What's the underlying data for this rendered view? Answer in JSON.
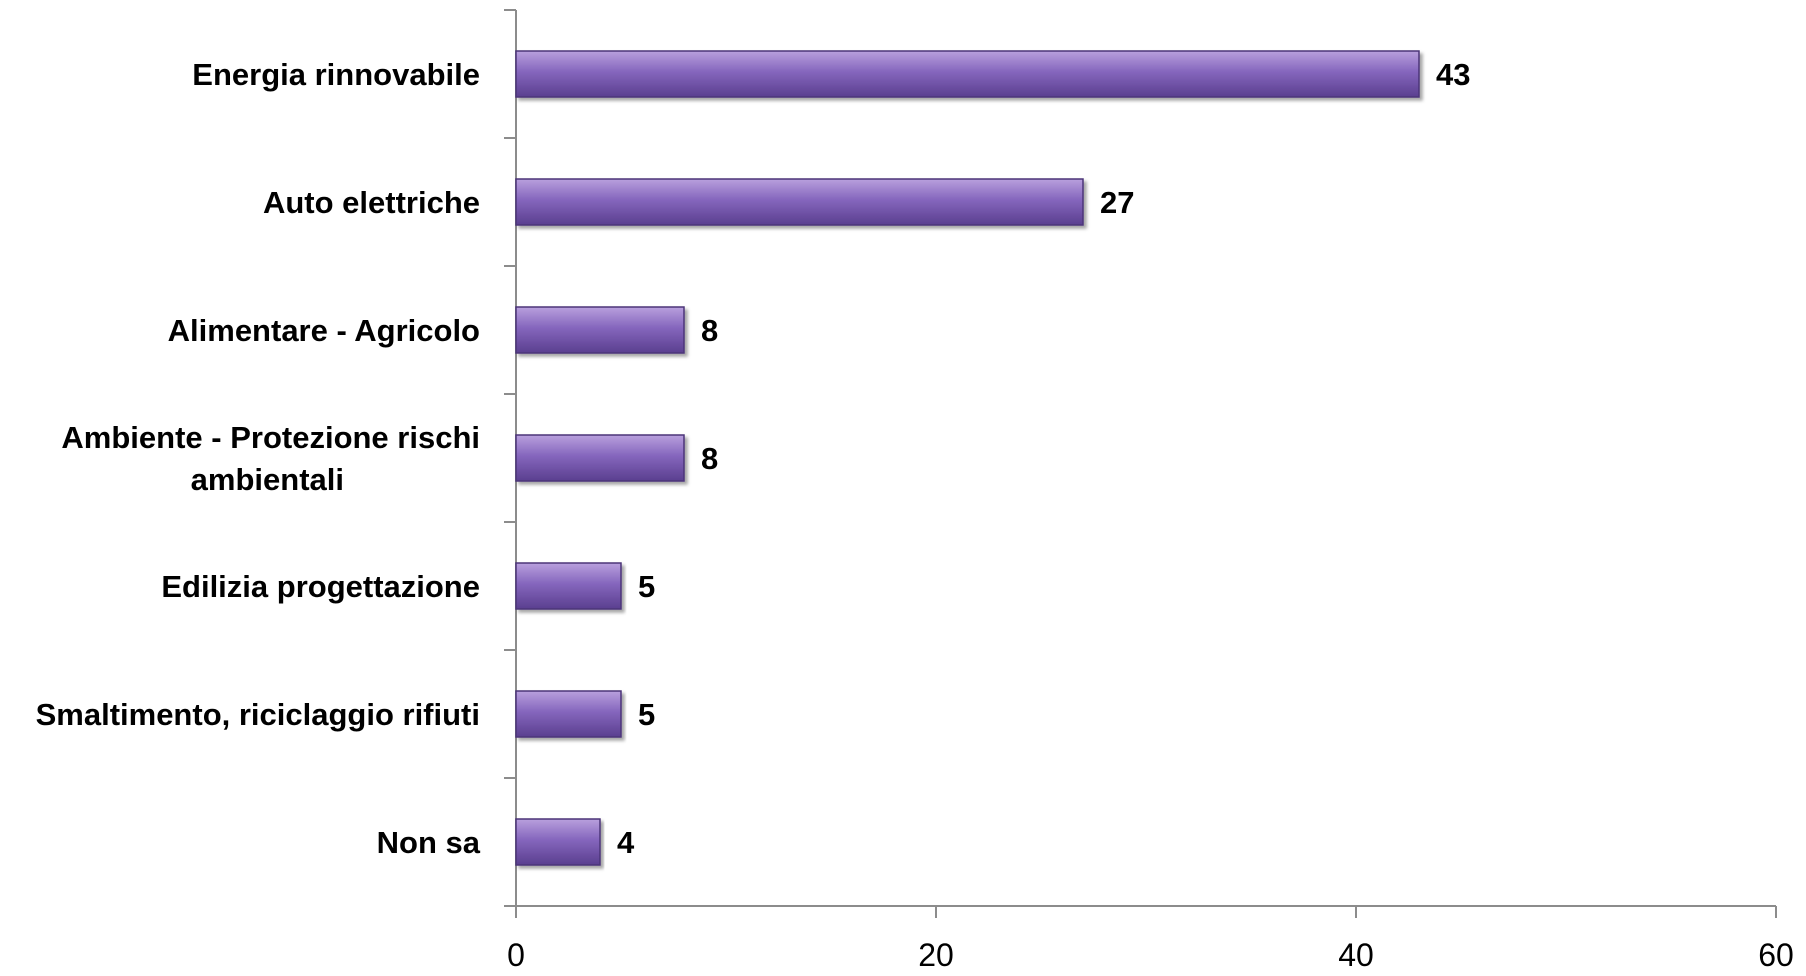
{
  "chart_data": {
    "type": "bar",
    "orientation": "horizontal",
    "categories": [
      [
        "Energia rinnovabile"
      ],
      [
        "Auto elettriche"
      ],
      [
        "Alimentare - Agricolo"
      ],
      [
        "Ambiente - Protezione rischi",
        "ambientali"
      ],
      [
        "Edilizia progettazione"
      ],
      [
        "Smaltimento, riciclaggio rifiuti"
      ],
      [
        "Non sa"
      ]
    ],
    "values": [
      43,
      27,
      8,
      8,
      5,
      5,
      4
    ],
    "value_labels": [
      "43",
      "27",
      "8",
      "8",
      "5",
      "5",
      "4"
    ],
    "xlim": [
      0,
      60
    ],
    "xticks": [
      "0",
      "20",
      "40",
      "60"
    ],
    "title": "",
    "xlabel": "",
    "ylabel": "",
    "grid": false,
    "legend": "none",
    "colors": {
      "bar_top": "#b9a0dd",
      "bar_mid": "#8566bd",
      "bar_bottom": "#5a3f8f",
      "bar_edge": "#4b3478",
      "axis": "#8c8c8c"
    }
  }
}
